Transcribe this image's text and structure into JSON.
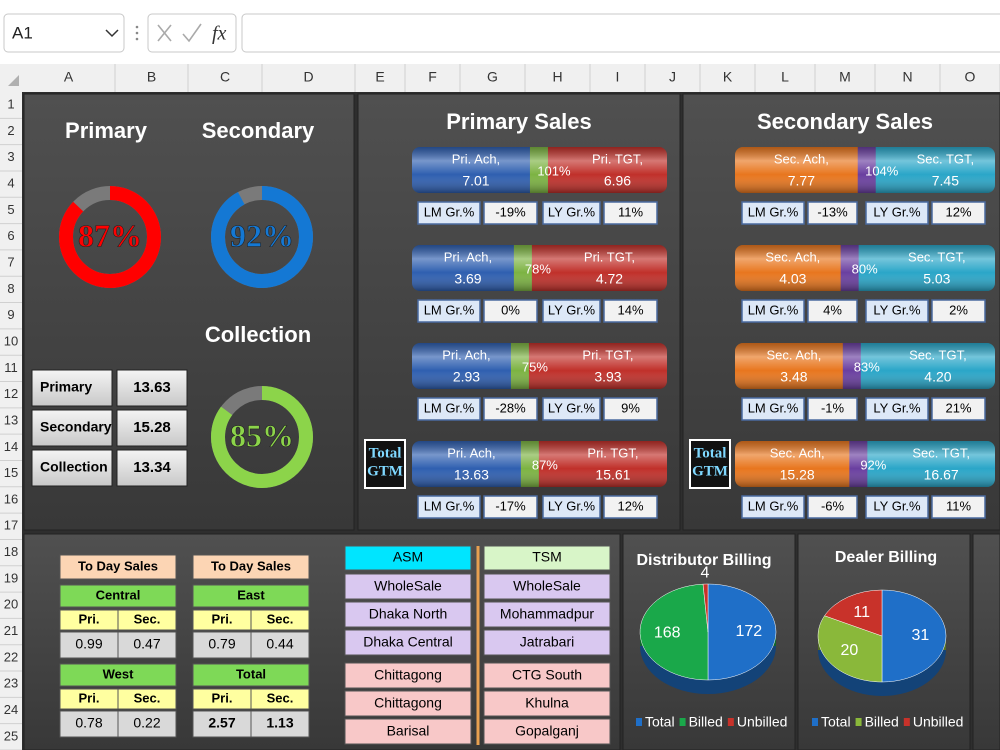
{
  "formula_bar": {
    "name_box": "A1",
    "function_label": "fx"
  },
  "column_headers": [
    "A",
    "B",
    "C",
    "D",
    "E",
    "F",
    "G",
    "H",
    "I",
    "J",
    "K",
    "L",
    "M",
    "N",
    "O"
  ],
  "row_headers": [
    "1",
    "2",
    "3",
    "4",
    "5",
    "6",
    "7",
    "8",
    "9",
    "10",
    "11",
    "12",
    "13",
    "14",
    "15",
    "16",
    "17",
    "18",
    "19",
    "20",
    "21",
    "22",
    "23",
    "24",
    "25"
  ],
  "gauges": [
    {
      "title": "Primary",
      "value": 87,
      "value_label": "87%",
      "color": "#ff0000"
    },
    {
      "title": "Secondary",
      "value": 92,
      "value_label": "92%",
      "color": "#1478d4"
    },
    {
      "title": "Collection",
      "value": 85,
      "value_label": "85%",
      "color": "#8cd44a"
    }
  ],
  "summary": [
    {
      "label": "Primary",
      "value": "13.63"
    },
    {
      "label": "Secondary",
      "value": "15.28"
    },
    {
      "label": "Collection",
      "value": "13.34"
    }
  ],
  "sales_panels": [
    {
      "title": "Primary Sales",
      "total_label": "Total GTM",
      "ach_name": "Pri. Ach,",
      "tgt_name": "Pri. TGT,",
      "ach_color": "#2f5fb0",
      "tgt_color": "#c0302a",
      "divider_color": "#7cb342",
      "rows": [
        {
          "ach": 7.01,
          "tgt": 6.96,
          "pct": 101,
          "value_labels": {
            "ach": "7.01",
            "tgt": "6.96",
            "pct": "101%"
          },
          "growth": [
            "LM Gr.%",
            "-19%",
            "LY Gr.%",
            "11%"
          ]
        },
        {
          "ach": 3.69,
          "tgt": 4.72,
          "pct": 78,
          "value_labels": {
            "ach": "3.69",
            "tgt": "4.72",
            "pct": "78%"
          },
          "growth": [
            "LM Gr.%",
            "0%",
            "LY Gr.%",
            "14%"
          ]
        },
        {
          "ach": 2.93,
          "tgt": 3.93,
          "pct": 75,
          "value_labels": {
            "ach": "2.93",
            "tgt": "3.93",
            "pct": "75%"
          },
          "growth": [
            "LM Gr.%",
            "-28%",
            "LY Gr.%",
            "9%"
          ]
        },
        {
          "ach": 13.63,
          "tgt": 15.61,
          "pct": 87,
          "value_labels": {
            "ach": "13.63",
            "tgt": "15.61",
            "pct": "87%"
          },
          "growth": [
            "LM Gr.%",
            "-17%",
            "LY Gr.%",
            "12%"
          ]
        }
      ]
    },
    {
      "title": "Secondary Sales",
      "total_label": "Total GTM",
      "ach_name": "Sec. Ach,",
      "tgt_name": "Sec. TGT,",
      "ach_color": "#e8761e",
      "tgt_color": "#2aa6c8",
      "divider_color": "#6a3fa0",
      "rows": [
        {
          "ach": 7.77,
          "tgt": 7.45,
          "pct": 104,
          "value_labels": {
            "ach": "7.77",
            "tgt": "7.45",
            "pct": "104%"
          },
          "growth": [
            "LM Gr.%",
            "-13%",
            "LY Gr.%",
            "12%"
          ]
        },
        {
          "ach": 4.03,
          "tgt": 5.03,
          "pct": 80,
          "value_labels": {
            "ach": "4.03",
            "tgt": "5.03",
            "pct": "80%"
          },
          "growth": [
            "LM Gr.%",
            "4%",
            "LY Gr.%",
            "2%"
          ]
        },
        {
          "ach": 3.48,
          "tgt": 4.2,
          "pct": 83,
          "value_labels": {
            "ach": "3.48",
            "tgt": "4.20",
            "pct": "83%"
          },
          "growth": [
            "LM Gr.%",
            "-1%",
            "LY Gr.%",
            "21%"
          ]
        },
        {
          "ach": 15.28,
          "tgt": 16.67,
          "pct": 92,
          "value_labels": {
            "ach": "15.28",
            "tgt": "16.67",
            "pct": "92%"
          },
          "growth": [
            "LM Gr.%",
            "-6%",
            "LY Gr.%",
            "11%"
          ]
        }
      ]
    }
  ],
  "today_sales": [
    {
      "title": "To Day Sales",
      "blocks": [
        {
          "region": "Central",
          "headers": [
            "Pri.",
            "Sec."
          ],
          "values": [
            "0.99",
            "0.47"
          ]
        },
        {
          "region": "West",
          "headers": [
            "Pri.",
            "Sec."
          ],
          "values": [
            "0.78",
            "0.22"
          ]
        }
      ]
    },
    {
      "title": "To Day Sales",
      "blocks": [
        {
          "region": "East",
          "headers": [
            "Pri.",
            "Sec."
          ],
          "values": [
            "0.79",
            "0.44"
          ]
        },
        {
          "region": "Total",
          "headers": [
            "Pri.",
            "Sec."
          ],
          "values": [
            "2.57",
            "1.13"
          ]
        }
      ]
    }
  ],
  "asm": {
    "header": "ASM",
    "items": [
      "WholeSale",
      "Dhaka North",
      "Dhaka Central",
      "Chittagong",
      "Chittagong",
      "Barisal"
    ]
  },
  "tsm": {
    "header": "TSM",
    "items": [
      "WholeSale",
      "Mohammadpur",
      "Jatrabari",
      "CTG South",
      "Khulna",
      "Gopalganj"
    ]
  },
  "billing_charts": [
    {
      "type": "pie",
      "title": "Distributor Billing",
      "categories": [
        "Total",
        "Billed",
        "Unbilled"
      ],
      "values": [
        172,
        168,
        4
      ],
      "colors": [
        "#1f6fc8",
        "#1aa84a",
        "#c8322a"
      ]
    },
    {
      "type": "pie",
      "title": "Dealer Billing",
      "categories": [
        "Total",
        "Billed",
        "Unbilled"
      ],
      "values": [
        31,
        20,
        11
      ],
      "colors": [
        "#1f6fc8",
        "#8ab83a",
        "#c8322a"
      ]
    }
  ]
}
